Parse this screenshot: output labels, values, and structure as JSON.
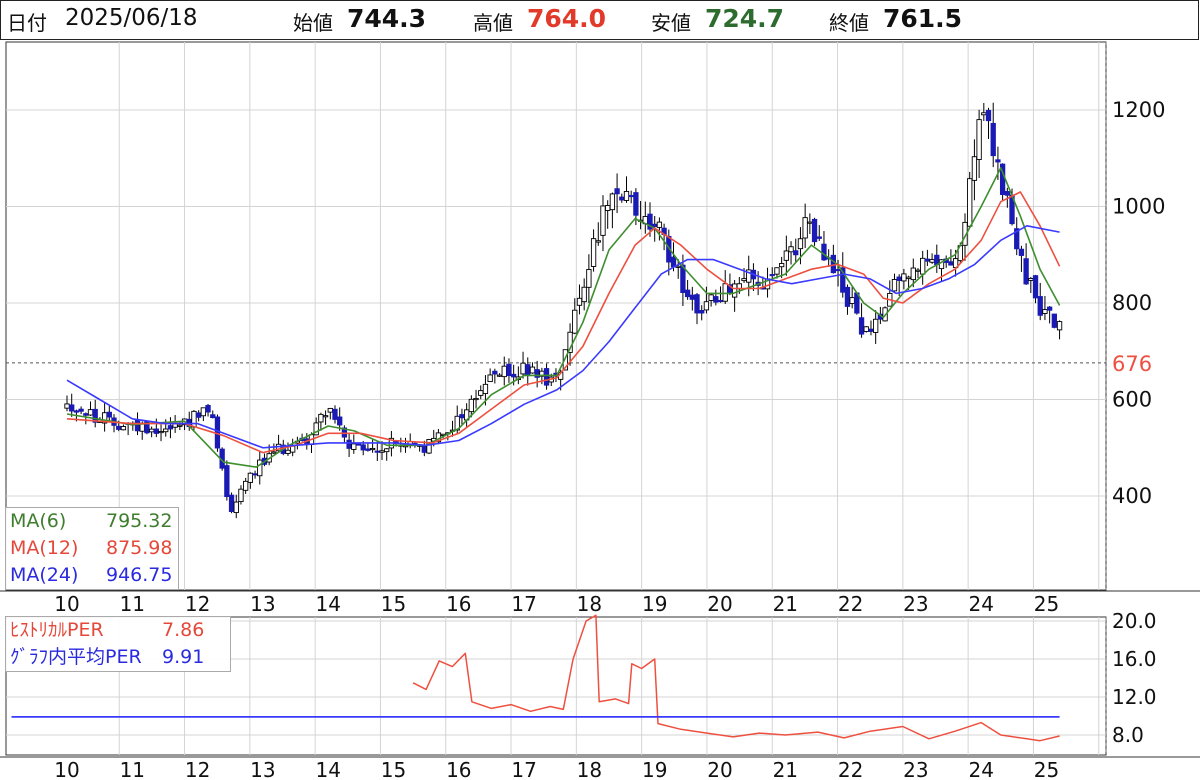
{
  "header": {
    "date_label": "日付",
    "date_value": "2025/06/18",
    "open_label": "始値",
    "open_value": "744.3",
    "high_label": "高値",
    "high_value": "764.0",
    "low_label": "安値",
    "low_value": "724.7",
    "close_label": "終値",
    "close_value": "761.5"
  },
  "colors": {
    "candle": "#1a1ab4",
    "ma6": "#3e8e2e",
    "ma12": "#ee5040",
    "ma24": "#3a3aff",
    "high": "#e23a2a",
    "low": "#2e7d32",
    "reference": "#ee5040"
  },
  "price_legend": [
    {
      "label": "MA(6)",
      "value": "795.32",
      "color": "#3e7d2e"
    },
    {
      "label": "MA(12)",
      "value": "875.98",
      "color": "#e5483a"
    },
    {
      "label": "MA(24)",
      "value": "946.75",
      "color": "#2a2ae0"
    }
  ],
  "per_legend": [
    {
      "label": "ﾋｽﾄﾘｶﾙPER",
      "value": "7.86",
      "color": "#e5483a"
    },
    {
      "label": "ｸﾞﾗﾌ内平均PER",
      "value": "9.91",
      "color": "#2a2ae0"
    }
  ],
  "chart_data": [
    {
      "type": "candlestick",
      "x_ticks": [
        "10",
        "11",
        "12",
        "13",
        "14",
        "15",
        "16",
        "17",
        "18",
        "19",
        "20",
        "21",
        "22",
        "23",
        "24",
        "25"
      ],
      "y_ticks": [
        "400",
        "600",
        "800",
        "1000",
        "1200"
      ],
      "ylim": [
        225,
        1325
      ],
      "reference_line": {
        "value": 676,
        "label": "676"
      },
      "last_candle": {
        "open": 744.3,
        "high": 764.0,
        "low": 724.7,
        "close": 761.5
      },
      "close_path": [
        [
          10,
          590
        ],
        [
          10.5,
          560
        ],
        [
          11,
          545
        ],
        [
          11.5,
          540
        ],
        [
          11.9,
          560
        ],
        [
          12.2,
          575
        ],
        [
          12.5,
          370
        ],
        [
          12.8,
          450
        ],
        [
          13.3,
          500
        ],
        [
          13.7,
          520
        ],
        [
          14.0,
          590
        ],
        [
          14.3,
          500
        ],
        [
          14.7,
          490
        ],
        [
          15.0,
          510
        ],
        [
          15.5,
          500
        ],
        [
          16.0,
          560
        ],
        [
          16.5,
          650
        ],
        [
          17.0,
          660
        ],
        [
          17.5,
          640
        ],
        [
          17.8,
          800
        ],
        [
          18.2,
          980
        ],
        [
          18.5,
          1020
        ],
        [
          18.8,
          980
        ],
        [
          19.1,
          940
        ],
        [
          19.4,
          850
        ],
        [
          19.7,
          780
        ],
        [
          20.0,
          820
        ],
        [
          20.3,
          860
        ],
        [
          20.7,
          830
        ],
        [
          21.0,
          880
        ],
        [
          21.3,
          960
        ],
        [
          21.6,
          900
        ],
        [
          22.0,
          800
        ],
        [
          22.3,
          720
        ],
        [
          22.6,
          840
        ],
        [
          23.0,
          880
        ],
        [
          23.3,
          870
        ],
        [
          23.7,
          920
        ],
        [
          24.0,
          1200
        ],
        [
          24.3,
          1060
        ],
        [
          24.6,
          880
        ],
        [
          24.9,
          790
        ],
        [
          25.2,
          750
        ]
      ],
      "series": [
        {
          "name": "MA(6)",
          "values": [
            [
              10,
              570
            ],
            [
              11,
              548
            ],
            [
              11.8,
              555
            ],
            [
              12.4,
              470
            ],
            [
              12.9,
              460
            ],
            [
              13.4,
              505
            ],
            [
              14,
              545
            ],
            [
              14.4,
              535
            ],
            [
              14.9,
              505
            ],
            [
              15.5,
              505
            ],
            [
              16,
              540
            ],
            [
              16.5,
              610
            ],
            [
              17,
              650
            ],
            [
              17.5,
              650
            ],
            [
              17.9,
              760
            ],
            [
              18.3,
              910
            ],
            [
              18.7,
              975
            ],
            [
              19.0,
              955
            ],
            [
              19.4,
              880
            ],
            [
              19.8,
              820
            ],
            [
              20.2,
              820
            ],
            [
              20.6,
              840
            ],
            [
              21.0,
              860
            ],
            [
              21.4,
              920
            ],
            [
              21.8,
              880
            ],
            [
              22.2,
              800
            ],
            [
              22.5,
              770
            ],
            [
              22.8,
              820
            ],
            [
              23.2,
              870
            ],
            [
              23.6,
              900
            ],
            [
              24.0,
              1000
            ],
            [
              24.3,
              1080
            ],
            [
              24.6,
              980
            ],
            [
              24.9,
              870
            ],
            [
              25.2,
              795
            ]
          ]
        },
        {
          "name": "MA(12)",
          "values": [
            [
              10,
              560
            ],
            [
              11,
              550
            ],
            [
              11.8,
              550
            ],
            [
              12.4,
              525
            ],
            [
              13,
              490
            ],
            [
              13.5,
              505
            ],
            [
              14,
              530
            ],
            [
              14.5,
              530
            ],
            [
              15,
              515
            ],
            [
              15.6,
              510
            ],
            [
              16,
              530
            ],
            [
              16.5,
              580
            ],
            [
              17,
              630
            ],
            [
              17.5,
              645
            ],
            [
              17.9,
              710
            ],
            [
              18.3,
              820
            ],
            [
              18.7,
              920
            ],
            [
              19.0,
              955
            ],
            [
              19.4,
              920
            ],
            [
              19.8,
              870
            ],
            [
              20.2,
              830
            ],
            [
              20.6,
              830
            ],
            [
              21.0,
              850
            ],
            [
              21.4,
              870
            ],
            [
              21.8,
              880
            ],
            [
              22.2,
              860
            ],
            [
              22.5,
              810
            ],
            [
              22.8,
              800
            ],
            [
              23.2,
              840
            ],
            [
              23.6,
              870
            ],
            [
              24.0,
              930
            ],
            [
              24.3,
              1010
            ],
            [
              24.6,
              1030
            ],
            [
              24.9,
              960
            ],
            [
              25.2,
              876
            ]
          ]
        },
        {
          "name": "MA(24)",
          "values": [
            [
              10,
              640
            ],
            [
              10.5,
              600
            ],
            [
              11,
              560
            ],
            [
              11.5,
              550
            ],
            [
              12,
              550
            ],
            [
              12.4,
              530
            ],
            [
              13,
              500
            ],
            [
              13.5,
              505
            ],
            [
              14,
              510
            ],
            [
              14.5,
              510
            ],
            [
              15,
              510
            ],
            [
              15.5,
              505
            ],
            [
              16,
              515
            ],
            [
              16.5,
              550
            ],
            [
              17,
              590
            ],
            [
              17.5,
              620
            ],
            [
              17.9,
              660
            ],
            [
              18.3,
              720
            ],
            [
              18.7,
              790
            ],
            [
              19.1,
              860
            ],
            [
              19.5,
              890
            ],
            [
              19.9,
              890
            ],
            [
              20.3,
              870
            ],
            [
              20.7,
              850
            ],
            [
              21.1,
              840
            ],
            [
              21.5,
              850
            ],
            [
              21.9,
              860
            ],
            [
              22.3,
              850
            ],
            [
              22.7,
              820
            ],
            [
              23.1,
              830
            ],
            [
              23.5,
              850
            ],
            [
              23.9,
              880
            ],
            [
              24.3,
              930
            ],
            [
              24.7,
              960
            ],
            [
              25.2,
              947
            ]
          ]
        }
      ]
    },
    {
      "type": "line",
      "x_ticks": [
        "10",
        "11",
        "12",
        "13",
        "14",
        "15",
        "16",
        "17",
        "18",
        "19",
        "20",
        "21",
        "22",
        "23",
        "24",
        "25"
      ],
      "y_ticks": [
        "8.0",
        "12.0",
        "16.0",
        "20.0"
      ],
      "ylim": [
        6,
        22.5
      ],
      "series": [
        {
          "name": "ﾋｽﾄﾘｶﾙPER",
          "values": [
            [
              15.3,
              13.5
            ],
            [
              15.5,
              12.8
            ],
            [
              15.7,
              15.8
            ],
            [
              15.9,
              15.2
            ],
            [
              16.1,
              16.6
            ],
            [
              16.2,
              11.5
            ],
            [
              16.5,
              10.8
            ],
            [
              16.8,
              11.2
            ],
            [
              17.1,
              10.5
            ],
            [
              17.4,
              11.0
            ],
            [
              17.6,
              10.7
            ],
            [
              17.75,
              16.0
            ],
            [
              17.95,
              20.0
            ],
            [
              18.1,
              20.6
            ],
            [
              18.15,
              11.5
            ],
            [
              18.4,
              11.8
            ],
            [
              18.6,
              11.3
            ],
            [
              18.65,
              15.5
            ],
            [
              18.8,
              15.0
            ],
            [
              19.0,
              16.0
            ],
            [
              19.05,
              9.2
            ],
            [
              19.4,
              8.6
            ],
            [
              19.8,
              8.2
            ],
            [
              20.2,
              7.8
            ],
            [
              20.6,
              8.2
            ],
            [
              21.0,
              8.0
            ],
            [
              21.5,
              8.3
            ],
            [
              21.9,
              7.7
            ],
            [
              22.3,
              8.4
            ],
            [
              22.8,
              8.9
            ],
            [
              23.2,
              7.6
            ],
            [
              23.6,
              8.4
            ],
            [
              24.0,
              9.3
            ],
            [
              24.3,
              8.0
            ],
            [
              24.7,
              7.6
            ],
            [
              24.9,
              7.4
            ],
            [
              25.2,
              7.9
            ]
          ]
        },
        {
          "name": "ｸﾞﾗﾌ内平均PER",
          "values": [
            [
              9.15,
              9.91
            ],
            [
              25.2,
              9.91
            ]
          ]
        }
      ]
    }
  ]
}
